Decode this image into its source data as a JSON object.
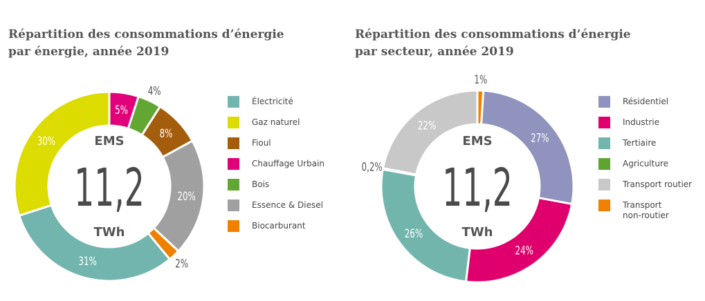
{
  "chart_data": [
    {
      "type": "pie",
      "title_line1": "Répartition des consommations d’énergie",
      "title_line2": "par énergie, année 2019",
      "center": {
        "top": "EMS",
        "value": "11,2",
        "unit": "TWh"
      },
      "legend_placement": "right",
      "slices_clockwise_from_top": [
        {
          "name": "Chauffage Urbain",
          "value": 5,
          "label": "5%",
          "color": "#e2007a",
          "label_pos": "inside"
        },
        {
          "name": "Bois",
          "value": 4,
          "label": "4%",
          "color": "#62a633",
          "label_pos": "outside"
        },
        {
          "name": "Fioul",
          "value": 8,
          "label": "8%",
          "color": "#a35d0c",
          "label_pos": "inside"
        },
        {
          "name": "Essence & Diesel",
          "value": 20,
          "label": "20%",
          "color": "#a0a0a0",
          "label_pos": "inside"
        },
        {
          "name": "Biocarburant",
          "value": 2,
          "label": "2%",
          "color": "#f08000",
          "label_pos": "outside"
        },
        {
          "name": "Électricité",
          "value": 31,
          "label": "31%",
          "color": "#72b5ae",
          "label_pos": "inside"
        },
        {
          "name": "Gaz naturel",
          "value": 30,
          "label": "30%",
          "color": "#dcdc00",
          "label_pos": "inside"
        }
      ],
      "legend": [
        {
          "name": "Électricité",
          "color": "#72b5ae"
        },
        {
          "name": "Gaz naturel",
          "color": "#dcdc00"
        },
        {
          "name": "Fioul",
          "color": "#a35d0c"
        },
        {
          "name": "Chauffage Urbain",
          "color": "#e2007a"
        },
        {
          "name": "Bois",
          "color": "#62a633"
        },
        {
          "name": "Essence & Diesel",
          "color": "#a0a0a0"
        },
        {
          "name": "Biocarburant",
          "color": "#f08000"
        }
      ]
    },
    {
      "type": "pie",
      "title_line1": "Répartition des consommations d’énergie",
      "title_line2": "par secteur, année 2019",
      "center": {
        "top": "EMS",
        "value": "11,2",
        "unit": "TWh"
      },
      "legend_placement": "right",
      "slices_clockwise_from_top": [
        {
          "name": "Transport non-routier",
          "value": 1,
          "label": "1%",
          "color": "#f08000",
          "label_pos": "outside"
        },
        {
          "name": "Résidentiel",
          "value": 27,
          "label": "27%",
          "color": "#8f93bd",
          "label_pos": "inside"
        },
        {
          "name": "Industrie",
          "value": 24,
          "label": "24%",
          "color": "#e0006d",
          "label_pos": "inside"
        },
        {
          "name": "Tertiaire",
          "value": 26,
          "label": "26%",
          "color": "#72b5ad",
          "label_pos": "inside"
        },
        {
          "name": "Agriculture",
          "value": 0.2,
          "label": "0,2%",
          "color": "#5fa431",
          "label_pos": "outside"
        },
        {
          "name": "Transport routier",
          "value": 22,
          "label": "22%",
          "color": "#c8c8c8",
          "label_pos": "inside"
        }
      ],
      "legend": [
        {
          "name": "Résidentiel",
          "color": "#8f93bd"
        },
        {
          "name": "Industrie",
          "color": "#e0006d"
        },
        {
          "name": "Tertiaire",
          "color": "#72b5ad"
        },
        {
          "name": "Agriculture",
          "color": "#5fa431"
        },
        {
          "name": "Transport routier",
          "color": "#c8c8c8"
        },
        {
          "name": "Transport non-routier",
          "color": "#f08000"
        }
      ]
    }
  ]
}
